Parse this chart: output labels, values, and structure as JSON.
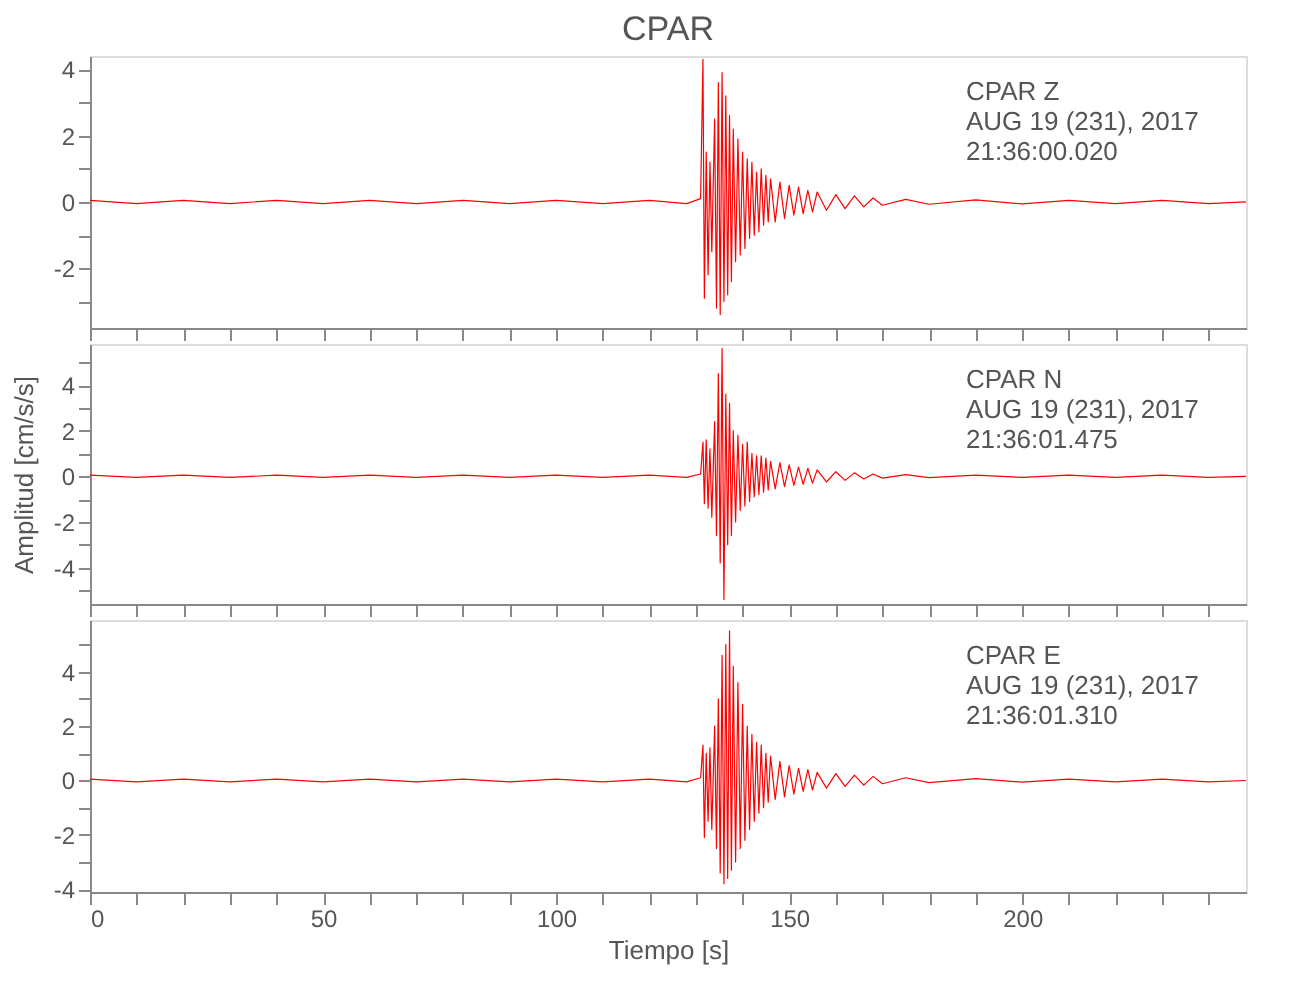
{
  "chart_data": [
    {
      "type": "line",
      "title": "CPAR",
      "annotations": [
        "CPAR   Z",
        "AUG 19 (231), 2017",
        "21:36:00.020"
      ],
      "xlim": [
        0,
        248
      ],
      "xticks": [
        0,
        {
          "value": 10,
          "label": null
        },
        {
          "value": 20,
          "label": null
        },
        {
          "value": 30,
          "label": null
        },
        {
          "value": 40,
          "label": null
        },
        50,
        {
          "value": 60,
          "label": null
        },
        {
          "value": 70,
          "label": null
        },
        {
          "value": 80,
          "label": null
        },
        {
          "value": 90,
          "label": null
        },
        100,
        {
          "value": 110,
          "label": null
        },
        {
          "value": 120,
          "label": null
        },
        {
          "value": 130,
          "label": null
        },
        {
          "value": 140,
          "label": null
        },
        150,
        {
          "value": 160,
          "label": null
        },
        {
          "value": 170,
          "label": null
        },
        {
          "value": 180,
          "label": null
        },
        {
          "value": 190,
          "label": null
        },
        200,
        {
          "value": 210,
          "label": null
        },
        {
          "value": 220,
          "label": null
        },
        {
          "value": 230,
          "label": null
        },
        {
          "value": 240,
          "label": null
        }
      ],
      "ylim": [
        -3.8,
        4.4
      ],
      "yticks": [
        {
          "value": -3,
          "label": null
        },
        -2,
        {
          "value": -1,
          "label": null
        },
        0,
        {
          "value": 1,
          "label": null
        },
        2,
        {
          "value": 3,
          "label": null
        },
        4
      ],
      "tick_labels": "y",
      "grid": false,
      "marker": "none",
      "line_style": "solid",
      "series": [
        {
          "color": "#ff0000",
          "x": [
            0,
            10,
            20,
            30,
            40,
            50,
            60,
            70,
            80,
            90,
            100,
            110,
            120,
            128,
            131,
            131.5,
            131.8,
            132.2,
            132.6,
            133,
            133.4,
            134,
            134.4,
            134.8,
            135.2,
            135.6,
            136,
            136.4,
            136.8,
            137.2,
            137.6,
            138,
            138.5,
            139,
            139.5,
            140,
            140.5,
            141,
            141.5,
            142,
            142.5,
            143,
            143.5,
            144,
            144.5,
            145,
            145.5,
            146,
            147,
            148,
            149,
            150,
            151,
            152,
            153,
            154,
            155,
            156,
            158,
            160,
            162,
            164,
            166,
            168,
            170,
            175,
            180,
            190,
            200,
            210,
            220,
            230,
            240,
            248
          ],
          "values": [
            0.05,
            -0.05,
            0.05,
            -0.05,
            0.05,
            -0.05,
            0.05,
            -0.05,
            0.05,
            -0.05,
            0.05,
            -0.05,
            0.05,
            -0.05,
            0.1,
            4.3,
            -2.9,
            1.5,
            -2.2,
            1.2,
            -1.5,
            2.5,
            -3.2,
            3.6,
            -3.4,
            3.9,
            -3.0,
            3.2,
            -2.8,
            2.6,
            -2.4,
            2.2,
            -1.8,
            1.9,
            -1.6,
            1.5,
            -1.4,
            1.3,
            -1.1,
            1.2,
            -1.0,
            0.9,
            -0.9,
            1.0,
            -0.7,
            0.8,
            -0.6,
            0.7,
            -0.6,
            0.6,
            -0.5,
            0.5,
            -0.4,
            0.45,
            -0.35,
            0.35,
            -0.3,
            0.3,
            -0.25,
            0.22,
            -0.2,
            0.18,
            -0.15,
            0.12,
            -0.1,
            0.08,
            -0.07,
            0.06,
            -0.06,
            0.05,
            -0.05,
            0.05,
            -0.05,
            0
          ]
        }
      ]
    },
    {
      "type": "line",
      "ylabel": "Amplitud [cm/s/s]",
      "annotations": [
        "CPAR   N",
        "AUG 19 (231), 2017",
        "21:36:01.475"
      ],
      "xlim": [
        0,
        248
      ],
      "xticks": [
        0,
        {
          "value": 10,
          "label": null
        },
        {
          "value": 20,
          "label": null
        },
        {
          "value": 30,
          "label": null
        },
        {
          "value": 40,
          "label": null
        },
        50,
        {
          "value": 60,
          "label": null
        },
        {
          "value": 70,
          "label": null
        },
        {
          "value": 80,
          "label": null
        },
        {
          "value": 90,
          "label": null
        },
        100,
        {
          "value": 110,
          "label": null
        },
        {
          "value": 120,
          "label": null
        },
        {
          "value": 130,
          "label": null
        },
        {
          "value": 140,
          "label": null
        },
        150,
        {
          "value": 160,
          "label": null
        },
        {
          "value": 170,
          "label": null
        },
        {
          "value": 180,
          "label": null
        },
        {
          "value": 190,
          "label": null
        },
        200,
        {
          "value": 210,
          "label": null
        },
        {
          "value": 220,
          "label": null
        },
        {
          "value": 230,
          "label": null
        },
        {
          "value": 240,
          "label": null
        }
      ],
      "ylim": [
        -5.6,
        5.8
      ],
      "yticks": [
        {
          "value": -5,
          "label": null
        },
        -4,
        {
          "value": -3,
          "label": null
        },
        -2,
        {
          "value": -1,
          "label": null
        },
        0,
        {
          "value": 1,
          "label": null
        },
        2,
        {
          "value": 3,
          "label": null
        },
        4,
        {
          "value": 5,
          "label": null
        }
      ],
      "tick_labels": "y",
      "grid": false,
      "marker": "none",
      "line_style": "solid",
      "series": [
        {
          "color": "#ff0000",
          "x": [
            0,
            10,
            20,
            30,
            40,
            50,
            60,
            70,
            80,
            90,
            100,
            110,
            120,
            128,
            131,
            131.5,
            131.8,
            132.2,
            132.6,
            133,
            133.4,
            134,
            134.4,
            134.8,
            135.2,
            135.6,
            136,
            136.4,
            136.8,
            137.2,
            137.6,
            138,
            138.5,
            139,
            139.5,
            140,
            140.5,
            141,
            141.5,
            142,
            142.5,
            143,
            143.5,
            144,
            144.5,
            145,
            145.5,
            146,
            147,
            148,
            149,
            150,
            151,
            152,
            153,
            154,
            155,
            156,
            158,
            160,
            162,
            164,
            166,
            168,
            170,
            175,
            180,
            190,
            200,
            210,
            220,
            230,
            240,
            248
          ],
          "values": [
            0.05,
            -0.05,
            0.05,
            -0.05,
            0.05,
            -0.05,
            0.05,
            -0.05,
            0.05,
            -0.05,
            0.05,
            -0.05,
            0.05,
            -0.05,
            0.1,
            1.5,
            -1.2,
            1.6,
            -1.4,
            1.2,
            -1.8,
            2.4,
            -2.6,
            4.5,
            -3.8,
            5.6,
            -5.4,
            3.6,
            -3.0,
            3.2,
            -2.6,
            2.0,
            -2.0,
            1.8,
            -1.5,
            1.4,
            -1.3,
            1.5,
            -1.1,
            1.0,
            -0.9,
            0.9,
            -0.8,
            0.9,
            -0.7,
            0.8,
            -0.6,
            0.65,
            -0.55,
            0.6,
            -0.45,
            0.5,
            -0.4,
            0.4,
            -0.35,
            0.35,
            -0.3,
            0.28,
            -0.25,
            0.2,
            -0.18,
            0.15,
            -0.12,
            0.1,
            -0.08,
            0.07,
            -0.06,
            0.05,
            -0.05,
            0.05,
            -0.05,
            0.05,
            -0.05,
            0
          ]
        }
      ]
    },
    {
      "type": "line",
      "xlabel": "Tiempo [s]",
      "annotations": [
        "CPAR   E",
        "AUG 19 (231), 2017",
        "21:36:01.310"
      ],
      "xlim": [
        0,
        248
      ],
      "xticks": [
        0,
        {
          "value": 10,
          "label": null
        },
        {
          "value": 20,
          "label": null
        },
        {
          "value": 30,
          "label": null
        },
        {
          "value": 40,
          "label": null
        },
        50,
        {
          "value": 60,
          "label": null
        },
        {
          "value": 70,
          "label": null
        },
        {
          "value": 80,
          "label": null
        },
        {
          "value": 90,
          "label": null
        },
        100,
        {
          "value": 110,
          "label": null
        },
        {
          "value": 120,
          "label": null
        },
        {
          "value": 130,
          "label": null
        },
        {
          "value": 140,
          "label": null
        },
        150,
        {
          "value": 160,
          "label": null
        },
        {
          "value": 170,
          "label": null
        },
        {
          "value": 180,
          "label": null
        },
        {
          "value": 190,
          "label": null
        },
        200,
        {
          "value": 210,
          "label": null
        },
        {
          "value": 220,
          "label": null
        },
        {
          "value": 230,
          "label": null
        },
        {
          "value": 240,
          "label": null
        }
      ],
      "ylim": [
        -4.1,
        5.9
      ],
      "yticks": [
        -4,
        {
          "value": -3,
          "label": null
        },
        -2,
        {
          "value": -1,
          "label": null
        },
        0,
        {
          "value": 1,
          "label": null
        },
        2,
        {
          "value": 3,
          "label": null
        },
        4,
        {
          "value": 5,
          "label": null
        }
      ],
      "grid": false,
      "marker": "none",
      "line_style": "solid",
      "series": [
        {
          "color": "#ff0000",
          "x": [
            0,
            10,
            20,
            30,
            40,
            50,
            60,
            70,
            80,
            90,
            100,
            110,
            120,
            128,
            131,
            131.5,
            131.8,
            132.2,
            132.6,
            133,
            133.4,
            134,
            134.4,
            134.8,
            135.2,
            135.6,
            136,
            136.4,
            136.8,
            137.2,
            137.6,
            138,
            138.5,
            139,
            139.5,
            140,
            140.5,
            141,
            141.5,
            142,
            142.5,
            143,
            143.5,
            144,
            144.5,
            145,
            145.5,
            146,
            147,
            148,
            149,
            150,
            151,
            152,
            153,
            154,
            155,
            156,
            158,
            160,
            162,
            164,
            166,
            168,
            170,
            175,
            180,
            190,
            200,
            210,
            220,
            230,
            240,
            248
          ],
          "values": [
            0.05,
            -0.05,
            0.05,
            -0.05,
            0.05,
            -0.05,
            0.05,
            -0.05,
            0.05,
            -0.05,
            0.05,
            -0.05,
            0.05,
            -0.05,
            0.1,
            1.3,
            -2.1,
            1.0,
            -1.5,
            1.2,
            -1.8,
            2.0,
            -2.5,
            3.0,
            -3.4,
            4.6,
            -3.8,
            5.0,
            -3.6,
            5.5,
            -3.3,
            4.2,
            -3.0,
            3.6,
            -2.5,
            2.8,
            -2.2,
            2.0,
            -1.8,
            1.7,
            -1.5,
            1.4,
            -1.2,
            1.3,
            -1.0,
            1.0,
            -0.8,
            0.9,
            -0.7,
            0.7,
            -0.6,
            0.55,
            -0.5,
            0.45,
            -0.4,
            0.4,
            -0.35,
            0.3,
            -0.28,
            0.25,
            -0.22,
            0.2,
            -0.17,
            0.15,
            -0.12,
            0.1,
            -0.08,
            0.07,
            -0.06,
            0.05,
            -0.05,
            0.05,
            -0.05,
            0
          ]
        }
      ]
    }
  ]
}
